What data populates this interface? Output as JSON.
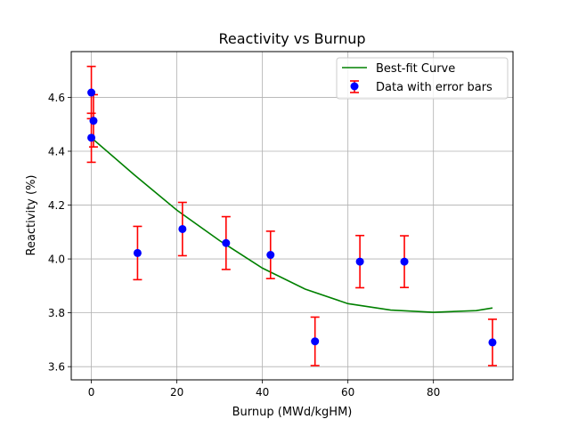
{
  "chart_data": {
    "type": "scatter",
    "title": "Reactivity vs Burnup",
    "xlabel": "Burnup (MWd/kgHM)",
    "ylabel": "Reactivity (%)",
    "xlim": [
      -4.7,
      98.6
    ],
    "ylim": [
      3.551,
      4.77
    ],
    "xticks": [
      0,
      20,
      40,
      60,
      80
    ],
    "yticks": [
      3.6,
      3.8,
      4.0,
      4.2,
      4.4,
      4.6
    ],
    "xtick_labels": [
      "0",
      "20",
      "40",
      "60",
      "80"
    ],
    "ytick_labels": [
      "3.6",
      "3.8",
      "4.0",
      "4.2",
      "4.4",
      "4.6"
    ],
    "grid": true,
    "legend_position": "upper right",
    "series": [
      {
        "name": "Data with error bars",
        "kind": "errorbar",
        "color": "#0000ff",
        "error_color": "#ff0000",
        "x": [
          0.0,
          0.5,
          0.0,
          10.8,
          21.3,
          31.5,
          41.9,
          52.3,
          62.8,
          73.2,
          93.8
        ],
        "y": [
          4.618,
          4.513,
          4.45,
          4.022,
          4.111,
          4.059,
          4.015,
          3.694,
          3.99,
          3.99,
          3.69
        ],
        "yerr": [
          0.097,
          0.097,
          0.091,
          0.099,
          0.099,
          0.098,
          0.088,
          0.09,
          0.097,
          0.096,
          0.086
        ]
      },
      {
        "name": "Best-fit Curve",
        "kind": "line",
        "color": "#008000",
        "x": [
          0,
          10,
          20,
          30,
          40,
          50,
          60,
          70,
          80,
          90,
          93.8
        ],
        "y": [
          4.45,
          4.313,
          4.181,
          4.068,
          3.966,
          3.888,
          3.834,
          3.81,
          3.802,
          3.808,
          3.818
        ]
      }
    ]
  }
}
